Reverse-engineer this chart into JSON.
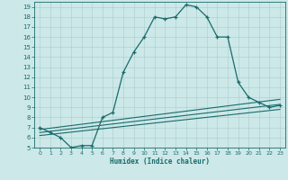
{
  "xlabel": "Humidex (Indice chaleur)",
  "background_color": "#cce8e8",
  "grid_color": "#aacccc",
  "line_color": "#1a6b6b",
  "xlim": [
    -0.5,
    23.5
  ],
  "ylim": [
    5,
    19.5
  ],
  "xticks": [
    0,
    1,
    2,
    3,
    4,
    5,
    6,
    7,
    8,
    9,
    10,
    11,
    12,
    13,
    14,
    15,
    16,
    17,
    18,
    19,
    20,
    21,
    22,
    23
  ],
  "yticks": [
    5,
    6,
    7,
    8,
    9,
    10,
    11,
    12,
    13,
    14,
    15,
    16,
    17,
    18,
    19
  ],
  "main_x": [
    0,
    1,
    2,
    3,
    4,
    5,
    6,
    7,
    8,
    9,
    10,
    11,
    12,
    13,
    14,
    15,
    16,
    17,
    18,
    19,
    20,
    21,
    22,
    23
  ],
  "main_y": [
    7.0,
    6.5,
    6.0,
    5.0,
    5.2,
    5.2,
    8.0,
    8.5,
    12.5,
    14.5,
    16.0,
    18.0,
    17.8,
    18.0,
    19.2,
    19.0,
    18.0,
    16.0,
    16.0,
    11.5,
    10.0,
    9.5,
    9.0,
    9.2
  ],
  "line2_x": [
    0,
    23
  ],
  "line2_y": [
    6.8,
    9.8
  ],
  "line3_x": [
    0,
    23
  ],
  "line3_y": [
    6.5,
    9.3
  ],
  "line4_x": [
    0,
    23
  ],
  "line4_y": [
    6.2,
    8.8
  ]
}
